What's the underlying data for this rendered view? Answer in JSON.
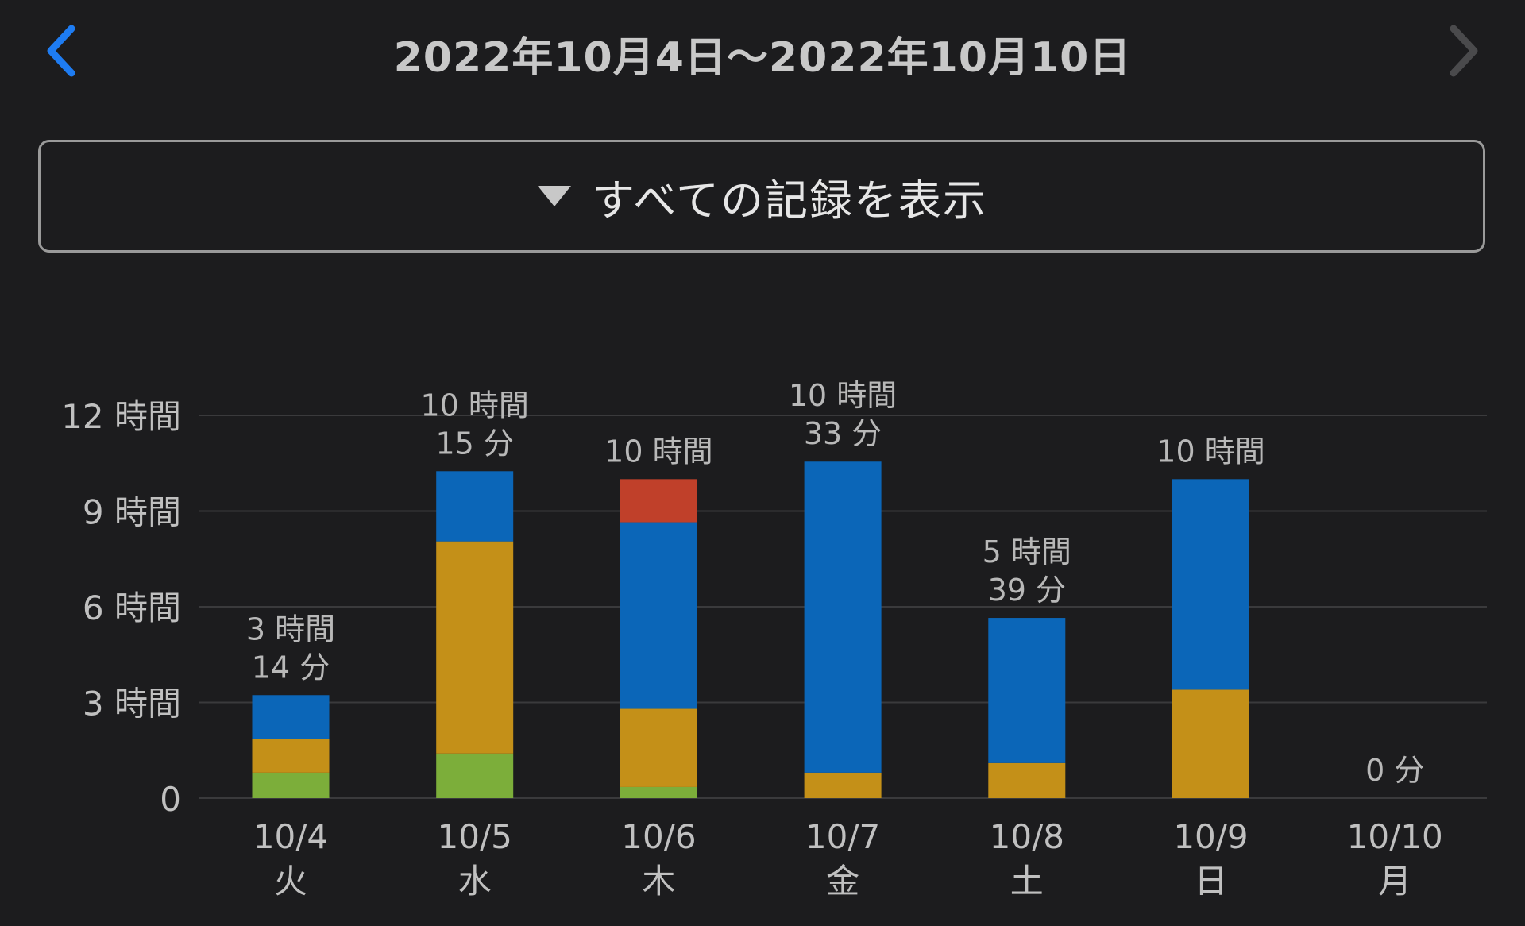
{
  "header": {
    "title": "2022年10月4日〜2022年10月10日",
    "back_icon": "chevron-left-icon",
    "forward_icon": "chevron-right-icon",
    "accent_color": "#1e7cf2",
    "disabled_color": "#4a4a4c"
  },
  "filter": {
    "label": "すべての記録を表示",
    "icon": "caret-down-icon"
  },
  "chart_data": {
    "type": "bar",
    "stacked": true,
    "y_unit": "hours",
    "ylim": [
      0,
      12
    ],
    "yticks": [
      0,
      3,
      6,
      9,
      12
    ],
    "ytick_labels": [
      "0",
      "3 時間",
      "6 時間",
      "9 時間",
      "12 時間"
    ],
    "categories": [
      "10/4",
      "10/5",
      "10/6",
      "10/7",
      "10/8",
      "10/9",
      "10/10"
    ],
    "weekdays": [
      "火",
      "水",
      "木",
      "金",
      "土",
      "日",
      "月"
    ],
    "totals_label": [
      [
        "3 時間",
        "14 分"
      ],
      [
        "10 時間",
        "15 分"
      ],
      [
        "10 時間"
      ],
      [
        "10 時間",
        "33 分"
      ],
      [
        "5 時間",
        "39 分"
      ],
      [
        "10 時間"
      ],
      [
        "0 分"
      ]
    ],
    "series": [
      {
        "name": "green",
        "color": "#7cae3a",
        "values": [
          0.8,
          1.4,
          0.35,
          0,
          0,
          0,
          0
        ]
      },
      {
        "name": "yellow",
        "color": "#c49018",
        "values": [
          1.05,
          6.65,
          2.45,
          0.8,
          1.1,
          3.4,
          0
        ]
      },
      {
        "name": "blue",
        "color": "#0b66b8",
        "values": [
          1.38,
          2.2,
          5.85,
          9.75,
          4.55,
          6.6,
          0
        ]
      },
      {
        "name": "red",
        "color": "#c0402a",
        "values": [
          0,
          0,
          1.35,
          0,
          0,
          0,
          0
        ]
      }
    ],
    "grid": true
  }
}
